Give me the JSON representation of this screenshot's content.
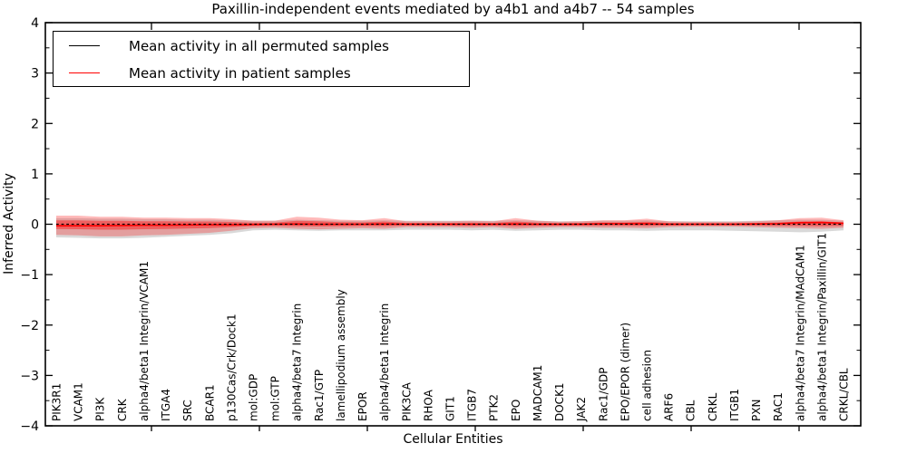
{
  "figure": {
    "title": "Paxillin-independent events mediated by a4b1 and a4b7 -- 54 samples",
    "xlabel": "Cellular Entities",
    "ylabel": "Inferred Activity"
  },
  "legend": {
    "entries": [
      {
        "label": "Mean activity in all permuted samples",
        "color": "#000000"
      },
      {
        "label": "Mean activity in patient samples",
        "color": "#ff0000"
      }
    ]
  },
  "axes": {
    "y_tick_labels": [
      "4",
      "3",
      "2",
      "1",
      "0",
      "−1",
      "−2",
      "−3",
      "−4"
    ],
    "y_tick_values": [
      4,
      3,
      2,
      1,
      0,
      -1,
      -2,
      -3,
      -4
    ],
    "y_minor_step": 0.5,
    "ylim": [
      -4,
      4
    ],
    "grid": false
  },
  "chart_data": {
    "type": "line",
    "title": "Paxillin-independent events mediated by a4b1 and a4b7 -- 54 samples",
    "xlabel": "Cellular Entities",
    "ylabel": "Inferred Activity",
    "ylim": [
      -4,
      4
    ],
    "legend_position": "upper left",
    "categories": [
      "PIK3R1",
      "VCAM1",
      "PI3K",
      "CRK",
      "alpha4/beta1 Integrin/VCAM1",
      "ITGA4",
      "SRC",
      "BCAR1",
      "p130Cas/Crk/Dock1",
      "mol:GDP",
      "mol:GTP",
      "alpha4/beta7 Integrin",
      "Rac1/GTP",
      "lamellipodium assembly",
      "EPOR",
      "alpha4/beta1 Integrin",
      "PIK3CA",
      "RHOA",
      "GIT1",
      "ITGB7",
      "PTK2",
      "EPO",
      "MADCAM1",
      "DOCK1",
      "JAK2",
      "Rac1/GDP",
      "EPO/EPOR (dimer)",
      "cell adhesion",
      "ARF6",
      "CBL",
      "CRKL",
      "ITGB1",
      "PXN",
      "RAC1",
      "alpha4/beta7 Integrin/MAdCAM1",
      "alpha4/beta1 Integrin/Paxillin/GIT1",
      "CRKL/CBL"
    ],
    "series": [
      {
        "name": "Mean activity in all permuted samples",
        "color": "#000000",
        "style": "dashed",
        "values": [
          0,
          0,
          0,
          0,
          0,
          0,
          0,
          0,
          0,
          0,
          0,
          0,
          0,
          0,
          0,
          0,
          0,
          0,
          0,
          0,
          0,
          0,
          0,
          0,
          0,
          0,
          0,
          0,
          0,
          0,
          0,
          0,
          0,
          0,
          0,
          0,
          0
        ]
      },
      {
        "name": "Mean activity in patient samples",
        "color": "#ff0000",
        "style": "solid",
        "values": [
          -0.03,
          -0.03,
          -0.03,
          -0.025,
          -0.02,
          -0.02,
          -0.015,
          -0.01,
          -0.01,
          -0.005,
          0,
          0.005,
          0,
          0,
          0,
          0.005,
          0,
          0,
          0,
          0,
          0,
          0.005,
          0,
          0,
          0,
          0.01,
          0.01,
          0.01,
          0,
          0,
          0,
          0,
          0.005,
          0.01,
          0.03,
          0.035,
          0.02
        ]
      }
    ],
    "bands": [
      {
        "name": "patient-std-band",
        "color": "#ff0000",
        "opacity": 0.27,
        "upper": [
          0.17,
          0.17,
          0.15,
          0.15,
          0.13,
          0.13,
          0.12,
          0.12,
          0.1,
          0.07,
          0.07,
          0.15,
          0.13,
          0.09,
          0.08,
          0.12,
          0.06,
          0.06,
          0.06,
          0.07,
          0.06,
          0.12,
          0.07,
          0.05,
          0.06,
          0.08,
          0.08,
          0.11,
          0.06,
          0.05,
          0.05,
          0.05,
          0.06,
          0.08,
          0.12,
          0.13,
          0.08
        ],
        "lower": [
          -0.21,
          -0.22,
          -0.24,
          -0.24,
          -0.22,
          -0.21,
          -0.19,
          -0.17,
          -0.13,
          -0.08,
          -0.07,
          -0.09,
          -0.1,
          -0.09,
          -0.08,
          -0.09,
          -0.06,
          -0.06,
          -0.06,
          -0.07,
          -0.06,
          -0.09,
          -0.07,
          -0.06,
          -0.06,
          -0.07,
          -0.07,
          -0.08,
          -0.06,
          -0.05,
          -0.05,
          -0.05,
          -0.06,
          -0.07,
          -0.08,
          -0.09,
          -0.07
        ]
      },
      {
        "name": "permuted-std-band",
        "color": "#888888",
        "opacity": 0.32,
        "upper": [
          0.12,
          0.12,
          0.11,
          0.11,
          0.1,
          0.1,
          0.09,
          0.09,
          0.08,
          0.07,
          0.07,
          0.09,
          0.08,
          0.07,
          0.07,
          0.08,
          0.07,
          0.07,
          0.07,
          0.07,
          0.07,
          0.08,
          0.07,
          0.06,
          0.06,
          0.07,
          0.07,
          0.08,
          0.06,
          0.06,
          0.06,
          0.06,
          0.07,
          0.08,
          0.09,
          0.09,
          0.07
        ],
        "lower": [
          -0.26,
          -0.27,
          -0.28,
          -0.28,
          -0.27,
          -0.25,
          -0.23,
          -0.21,
          -0.18,
          -0.12,
          -0.11,
          -0.12,
          -0.13,
          -0.12,
          -0.12,
          -0.12,
          -0.11,
          -0.11,
          -0.11,
          -0.12,
          -0.11,
          -0.13,
          -0.12,
          -0.11,
          -0.11,
          -0.12,
          -0.12,
          -0.13,
          -0.12,
          -0.12,
          -0.12,
          -0.13,
          -0.14,
          -0.15,
          -0.16,
          -0.15,
          -0.12
        ]
      }
    ]
  }
}
